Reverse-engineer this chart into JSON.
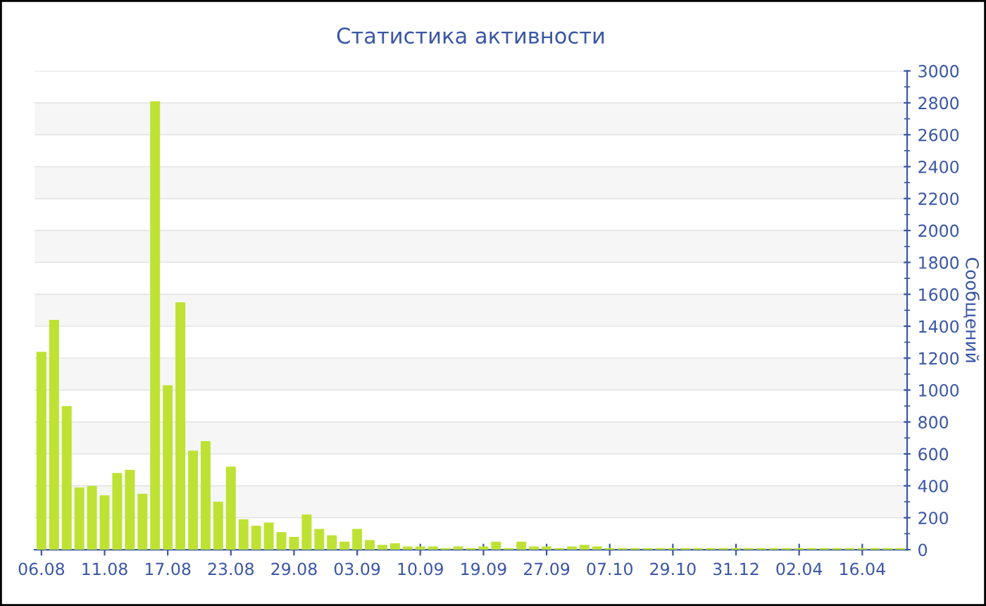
{
  "chart_data": {
    "type": "bar",
    "title": "Статистика активности",
    "ylabel": "Сообщений",
    "categories": [
      "06.08",
      null,
      null,
      null,
      null,
      "11.08",
      null,
      null,
      null,
      null,
      "17.08",
      null,
      null,
      null,
      null,
      "23.08",
      null,
      null,
      null,
      null,
      "29.08",
      null,
      null,
      null,
      null,
      "03.09",
      null,
      null,
      null,
      null,
      "10.09",
      null,
      null,
      null,
      null,
      "19.09",
      null,
      null,
      null,
      null,
      "27.09",
      null,
      null,
      null,
      null,
      "07.10",
      null,
      null,
      null,
      null,
      "29.10",
      null,
      null,
      null,
      null,
      "31.12",
      null,
      null,
      null,
      null,
      "02.04",
      null,
      null,
      null,
      null,
      "16.04",
      null,
      null,
      null
    ],
    "values": [
      1240,
      1440,
      900,
      390,
      400,
      340,
      480,
      500,
      350,
      2810,
      1030,
      1550,
      620,
      680,
      300,
      520,
      190,
      150,
      170,
      110,
      80,
      220,
      130,
      90,
      50,
      130,
      60,
      30,
      40,
      20,
      20,
      20,
      10,
      20,
      10,
      20,
      50,
      10,
      50,
      20,
      20,
      10,
      20,
      30,
      20,
      10,
      10,
      10,
      10,
      10,
      10,
      10,
      10,
      10,
      10,
      10,
      10,
      10,
      10,
      10,
      10,
      10,
      10,
      10,
      10,
      10,
      10,
      10,
      10
    ],
    "color": "#bde234",
    "ylim": [
      0,
      3000
    ],
    "yticks": [
      0,
      200,
      400,
      600,
      800,
      1000,
      1200,
      1400,
      1600,
      1800,
      2000,
      2200,
      2400,
      2600,
      2800,
      3000
    ],
    "grid": "y"
  }
}
